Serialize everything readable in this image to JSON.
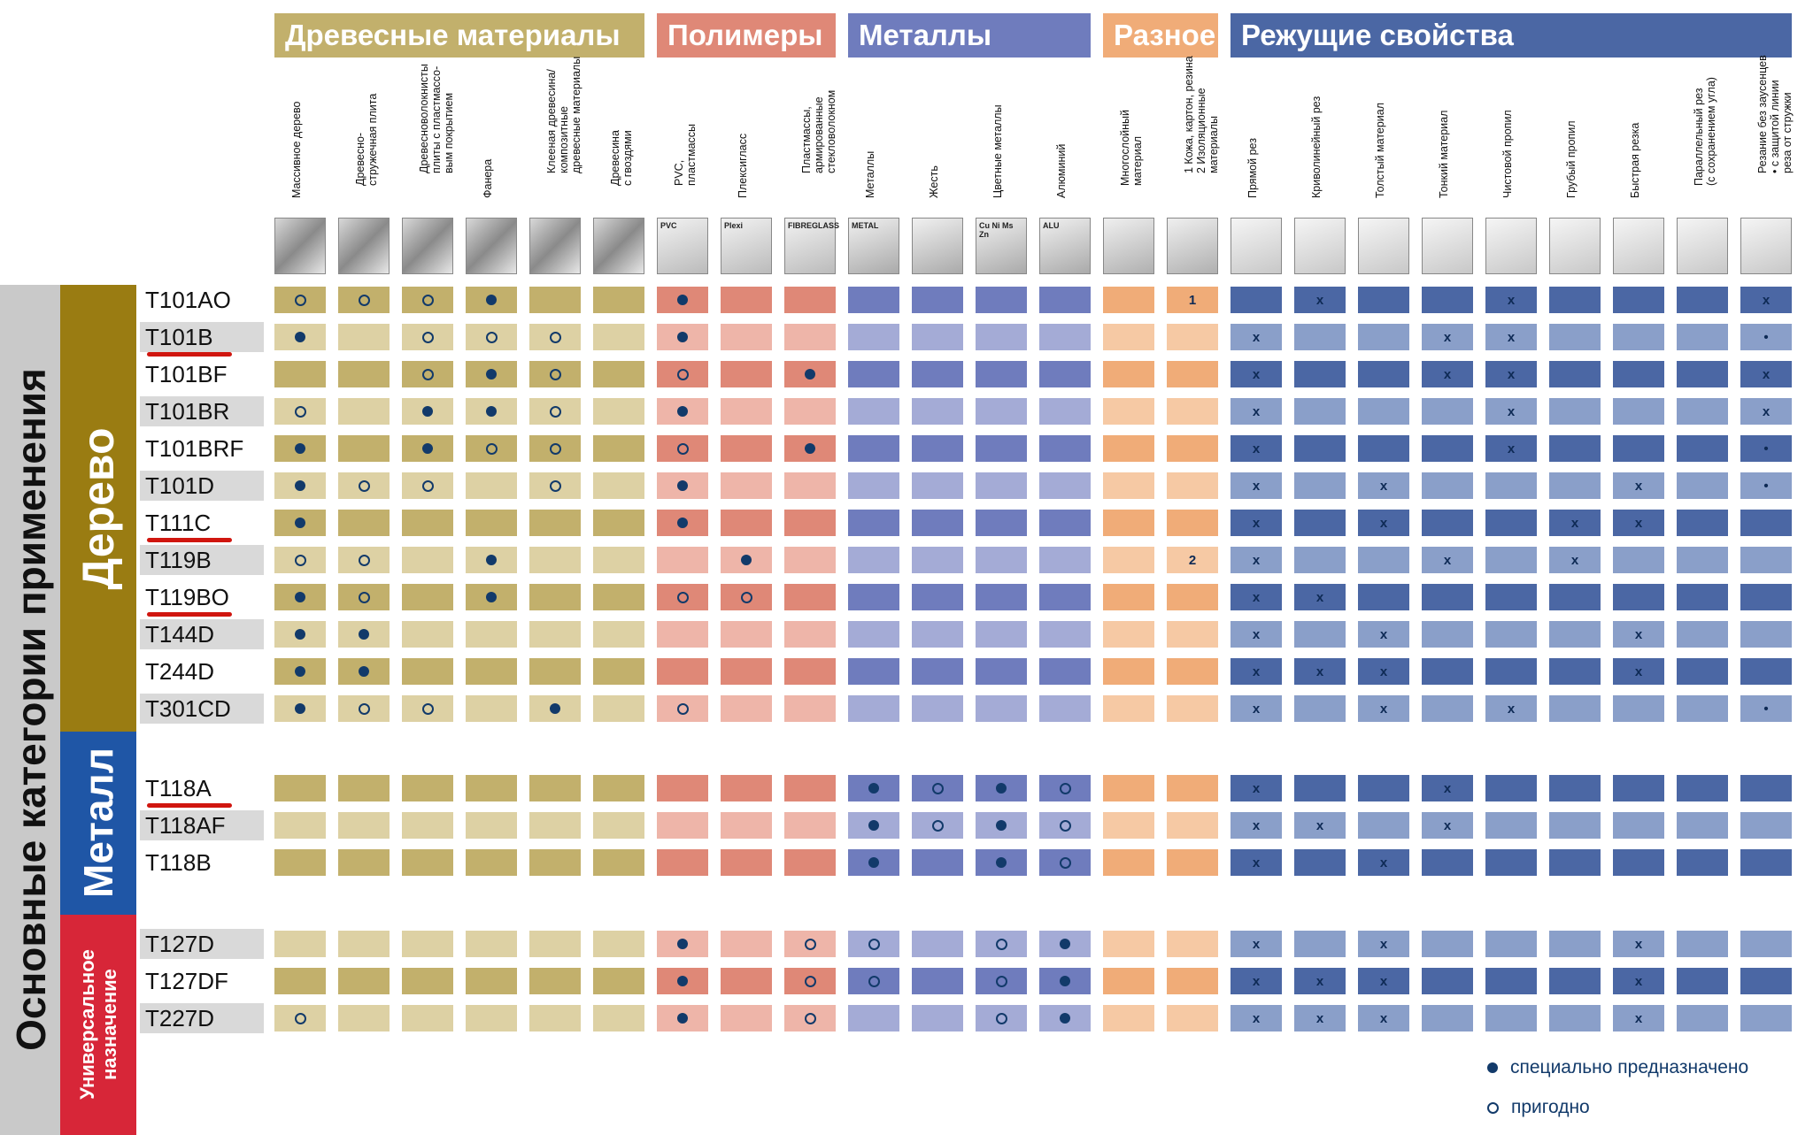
{
  "colors": {
    "wood": "#c2b06c",
    "wood_light": "#ddd1a4",
    "poly": "#df8877",
    "poly_light": "#eeb5a9",
    "metal": "#6f7cbd",
    "metal_light": "#a4abd6",
    "misc": "#f0ac78",
    "misc_light": "#f6c9a4",
    "cut": "#4b67a4",
    "cut_light": "#8a9fc9",
    "side_gray": "#c9c9c9",
    "side_wood": "#9a7c12",
    "side_metal": "#1f56a6",
    "side_universal": "#d72638",
    "underline": "#d0160f"
  },
  "groups": [
    {
      "label": "Древесные материалы",
      "color": "#c2b06c"
    },
    {
      "label": "Полимеры",
      "color": "#df8877"
    },
    {
      "label": "Металлы",
      "color": "#6f7cbd"
    },
    {
      "label": "Разное",
      "color": "#f0ac78"
    },
    {
      "label": "Режущие свойства",
      "color": "#4b67a4"
    }
  ],
  "columns": [
    {
      "label": "Массивное дерево",
      "icon": "solid-wood-icon"
    },
    {
      "label": "Древесно-\nстружечная плита",
      "icon": "chipboard-icon"
    },
    {
      "label": "Древесноволокнисты\nплиты с пластмассо-\nвым покрытием",
      "icon": "fibreboard-icon"
    },
    {
      "label": "Фанера",
      "icon": "plywood-icon"
    },
    {
      "label": "Клееная древесина/\nкомпозитные\nдревесные материалы",
      "icon": "glued-wood-icon"
    },
    {
      "label": "Древесина\nс гвоздями",
      "icon": "nailed-wood-icon"
    },
    {
      "label": "PVC,\nпластмассы",
      "icon": "pvc-icon",
      "icon_text": "PVC"
    },
    {
      "label": "Плексигласс",
      "icon": "plexi-icon",
      "icon_text": "Plexi"
    },
    {
      "label": "Пластмассы,\nармированные\nстекловолокном",
      "icon": "fibreglass-icon",
      "icon_text": "FIBREGLASS"
    },
    {
      "label": "Металлы",
      "icon": "metal-icon",
      "icon_text": "METAL"
    },
    {
      "label": "Жесть",
      "icon": "sheet-metal-icon"
    },
    {
      "label": "Цветные металлы",
      "icon": "nonferrous-icon",
      "icon_text": "Cu Ni Ms Zn"
    },
    {
      "label": "Алюминий",
      "icon": "aluminium-icon",
      "icon_text": "ALU"
    },
    {
      "label": "Многослойный\nматериал",
      "icon": "multilayer-icon"
    },
    {
      "label": "1 Кожа, картон, резина\n2 Изоляционные\nматериалы",
      "icon": "leather-icon"
    },
    {
      "label": "Прямой рез",
      "icon": "straight-cut-icon"
    },
    {
      "label": "Криволинейный рез",
      "icon": "curve-cut-icon"
    },
    {
      "label": "Толстый материал",
      "icon": "thick-material-icon"
    },
    {
      "label": "Тонкий материал",
      "icon": "thin-material-icon"
    },
    {
      "label": "Чистовой пропил",
      "icon": "clean-cut-icon"
    },
    {
      "label": "Грубый пропил",
      "icon": "rough-cut-icon"
    },
    {
      "label": "Быстрая резка",
      "icon": "fast-cut-icon"
    },
    {
      "label": "Параллельный рез\n(с сохранением угла)",
      "icon": "parallel-cut-icon"
    },
    {
      "label": "Резание без заусенцев\n• с защитой линии\nреза от стружки",
      "icon": "splinter-free-icon"
    }
  ],
  "rows": [
    {
      "name": "T101AO",
      "underline": false,
      "marks": [
        "o",
        "o",
        "o",
        "d",
        "",
        "",
        "d",
        "",
        "",
        "",
        "",
        "",
        "",
        "",
        "1",
        "",
        "x",
        "",
        "",
        "x",
        "",
        "",
        "",
        "x"
      ]
    },
    {
      "name": "T101B",
      "underline": true,
      "marks": [
        "d",
        "",
        "o",
        "o",
        "o",
        "",
        "d",
        "",
        "",
        "",
        "",
        "",
        "",
        "",
        "",
        "x",
        "",
        "",
        "x",
        "x",
        "",
        "",
        "",
        "•"
      ]
    },
    {
      "name": "T101BF",
      "underline": false,
      "marks": [
        "",
        "",
        "o",
        "d",
        "o",
        "",
        "o",
        "",
        "d",
        "",
        "",
        "",
        "",
        "",
        "",
        "x",
        "",
        "",
        "x",
        "x",
        "",
        "",
        "",
        "x"
      ]
    },
    {
      "name": "T101BR",
      "underline": false,
      "marks": [
        "o",
        "",
        "d",
        "d",
        "o",
        "",
        "d",
        "",
        "",
        "",
        "",
        "",
        "",
        "",
        "",
        "x",
        "",
        "",
        "",
        "x",
        "",
        "",
        "",
        "x"
      ]
    },
    {
      "name": "T101BRF",
      "underline": false,
      "marks": [
        "d",
        "",
        "d",
        "o",
        "o",
        "",
        "o",
        "",
        "d",
        "",
        "",
        "",
        "",
        "",
        "",
        "x",
        "",
        "",
        "",
        "x",
        "",
        "",
        "",
        "•"
      ]
    },
    {
      "name": "T101D",
      "underline": false,
      "marks": [
        "d",
        "o",
        "o",
        "",
        "o",
        "",
        "d",
        "",
        "",
        "",
        "",
        "",
        "",
        "",
        "",
        "x",
        "",
        "x",
        "",
        "",
        "",
        "x",
        "",
        "•"
      ]
    },
    {
      "name": "T111C",
      "underline": true,
      "marks": [
        "d",
        "",
        "",
        "",
        "",
        "",
        "d",
        "",
        "",
        "",
        "",
        "",
        "",
        "",
        "",
        "x",
        "",
        "x",
        "",
        "",
        "x",
        "x",
        "",
        ""
      ]
    },
    {
      "name": "T119B",
      "underline": false,
      "marks": [
        "o",
        "o",
        "",
        "d",
        "",
        "",
        "",
        "d",
        "",
        "",
        "",
        "",
        "",
        "",
        "2",
        "x",
        "",
        "",
        "x",
        "",
        "x",
        "",
        "",
        ""
      ]
    },
    {
      "name": "T119BO",
      "underline": true,
      "marks": [
        "d",
        "o",
        "",
        "d",
        "",
        "",
        "o",
        "o",
        "",
        "",
        "",
        "",
        "",
        "",
        "",
        "x",
        "x",
        "",
        "",
        "",
        "",
        "",
        "",
        ""
      ]
    },
    {
      "name": "T144D",
      "underline": false,
      "marks": [
        "d",
        "d",
        "",
        "",
        "",
        "",
        "",
        "",
        "",
        "",
        "",
        "",
        "",
        "",
        "",
        "x",
        "",
        "x",
        "",
        "",
        "",
        "x",
        "",
        ""
      ]
    },
    {
      "name": "T244D",
      "underline": false,
      "marks": [
        "d",
        "d",
        "",
        "",
        "",
        "",
        "",
        "",
        "",
        "",
        "",
        "",
        "",
        "",
        "",
        "x",
        "x",
        "x",
        "",
        "",
        "",
        "x",
        "",
        ""
      ]
    },
    {
      "name": "T301CD",
      "underline": false,
      "marks": [
        "d",
        "o",
        "o",
        "",
        "d",
        "",
        "o",
        "",
        "",
        "",
        "",
        "",
        "",
        "",
        "",
        "x",
        "",
        "x",
        "",
        "x",
        "",
        "",
        "",
        "•"
      ]
    },
    {
      "name": "T118A",
      "underline": true,
      "marks": [
        "",
        "",
        "",
        "",
        "",
        "",
        "",
        "",
        "",
        "d",
        "o",
        "d",
        "o",
        "",
        "",
        "x",
        "",
        "",
        "x",
        "",
        "",
        "",
        "",
        ""
      ]
    },
    {
      "name": "T118AF",
      "underline": false,
      "marks": [
        "",
        "",
        "",
        "",
        "",
        "",
        "",
        "",
        "",
        "d",
        "o",
        "d",
        "o",
        "",
        "",
        "x",
        "x",
        "",
        "x",
        "",
        "",
        "",
        "",
        ""
      ]
    },
    {
      "name": "T118B",
      "underline": false,
      "marks": [
        "",
        "",
        "",
        "",
        "",
        "",
        "",
        "",
        "",
        "d",
        "",
        "d",
        "o",
        "",
        "",
        "x",
        "",
        "x",
        "",
        "",
        "",
        "",
        "",
        ""
      ]
    },
    {
      "name": "T127D",
      "underline": false,
      "marks": [
        "",
        "",
        "",
        "",
        "",
        "",
        "d",
        "",
        "o",
        "o",
        "",
        "o",
        "d",
        "",
        "",
        "x",
        "",
        "x",
        "",
        "",
        "",
        "x",
        "",
        ""
      ]
    },
    {
      "name": "T127DF",
      "underline": false,
      "marks": [
        "",
        "",
        "",
        "",
        "",
        "",
        "d",
        "",
        "o",
        "o",
        "",
        "o",
        "d",
        "",
        "",
        "x",
        "x",
        "x",
        "",
        "",
        "",
        "x",
        "",
        ""
      ]
    },
    {
      "name": "T227D",
      "underline": false,
      "marks": [
        "o",
        "",
        "",
        "",
        "",
        "",
        "d",
        "",
        "o",
        "",
        "",
        "o",
        "d",
        "",
        "",
        "x",
        "x",
        "x",
        "",
        "",
        "",
        "x",
        "",
        ""
      ]
    }
  ],
  "sidebar": {
    "main_title": "Основные категории применения",
    "wood": "Дерево",
    "metal": "Металл",
    "universal": "Универсальное\nназначение"
  },
  "legend": {
    "special": "специально предназначено",
    "suitable": "пригодно"
  }
}
